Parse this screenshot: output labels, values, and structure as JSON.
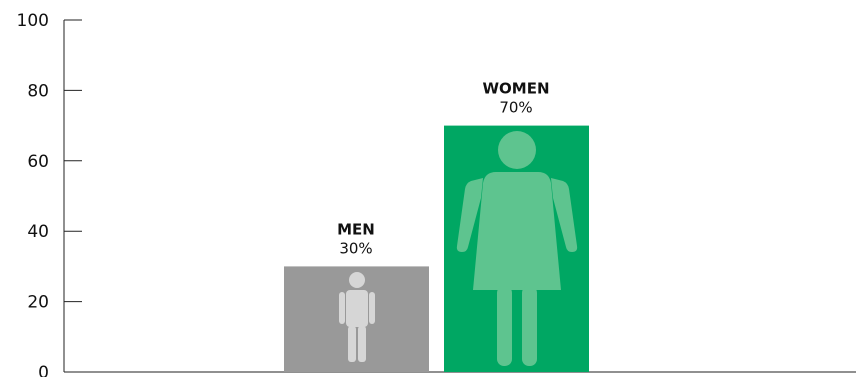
{
  "chart_data": {
    "type": "bar",
    "categories": [
      "MEN",
      "WOMEN"
    ],
    "values": [
      30,
      70
    ],
    "value_labels": [
      "30%",
      "70%"
    ],
    "ylim": [
      0,
      100
    ],
    "yticks": [
      "0",
      "20",
      "40",
      "60",
      "80",
      "100"
    ],
    "colors": [
      "#999999",
      "#00a763"
    ],
    "icon_colors": [
      "#d6d6d6",
      "#5ec48f"
    ],
    "icons": [
      "man-icon",
      "woman-icon"
    ],
    "grid": false
  }
}
